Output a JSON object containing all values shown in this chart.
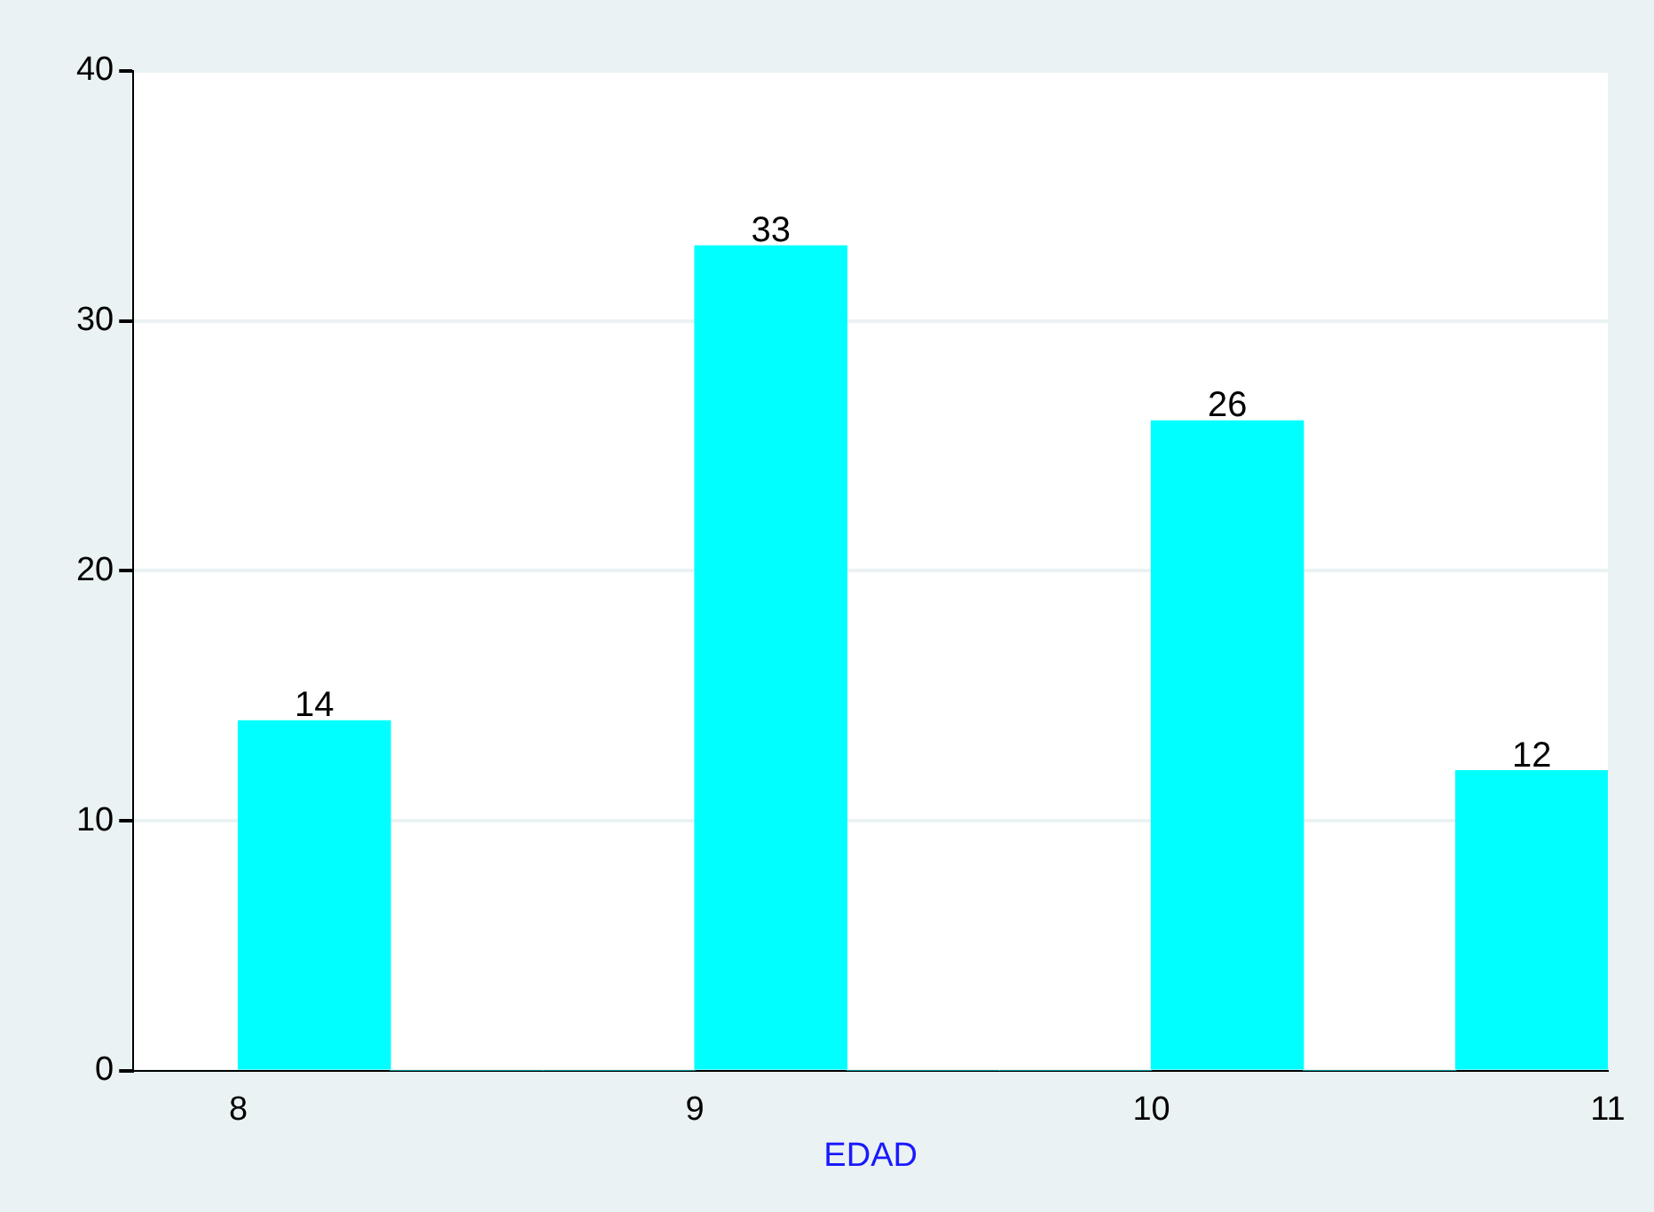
{
  "chart_data": {
    "type": "histogram",
    "xlabel": "EDAD",
    "bins": [
      8,
      8.333,
      8.667,
      9,
      9.333,
      9.667,
      10,
      10.333,
      10.667,
      11
    ],
    "values": [
      14,
      0,
      0,
      33,
      0,
      0,
      26,
      0,
      12
    ],
    "value_labels": [
      "14",
      null,
      null,
      "33",
      null,
      null,
      "26",
      null,
      "12"
    ],
    "color": "#00ffff",
    "xlim": [
      7.77,
      11
    ],
    "xticks": [
      8,
      9,
      10,
      11
    ],
    "ylim": [
      0,
      40
    ],
    "yticks": [
      0,
      10,
      20,
      30,
      40
    ],
    "grid": "y",
    "legend": false
  }
}
